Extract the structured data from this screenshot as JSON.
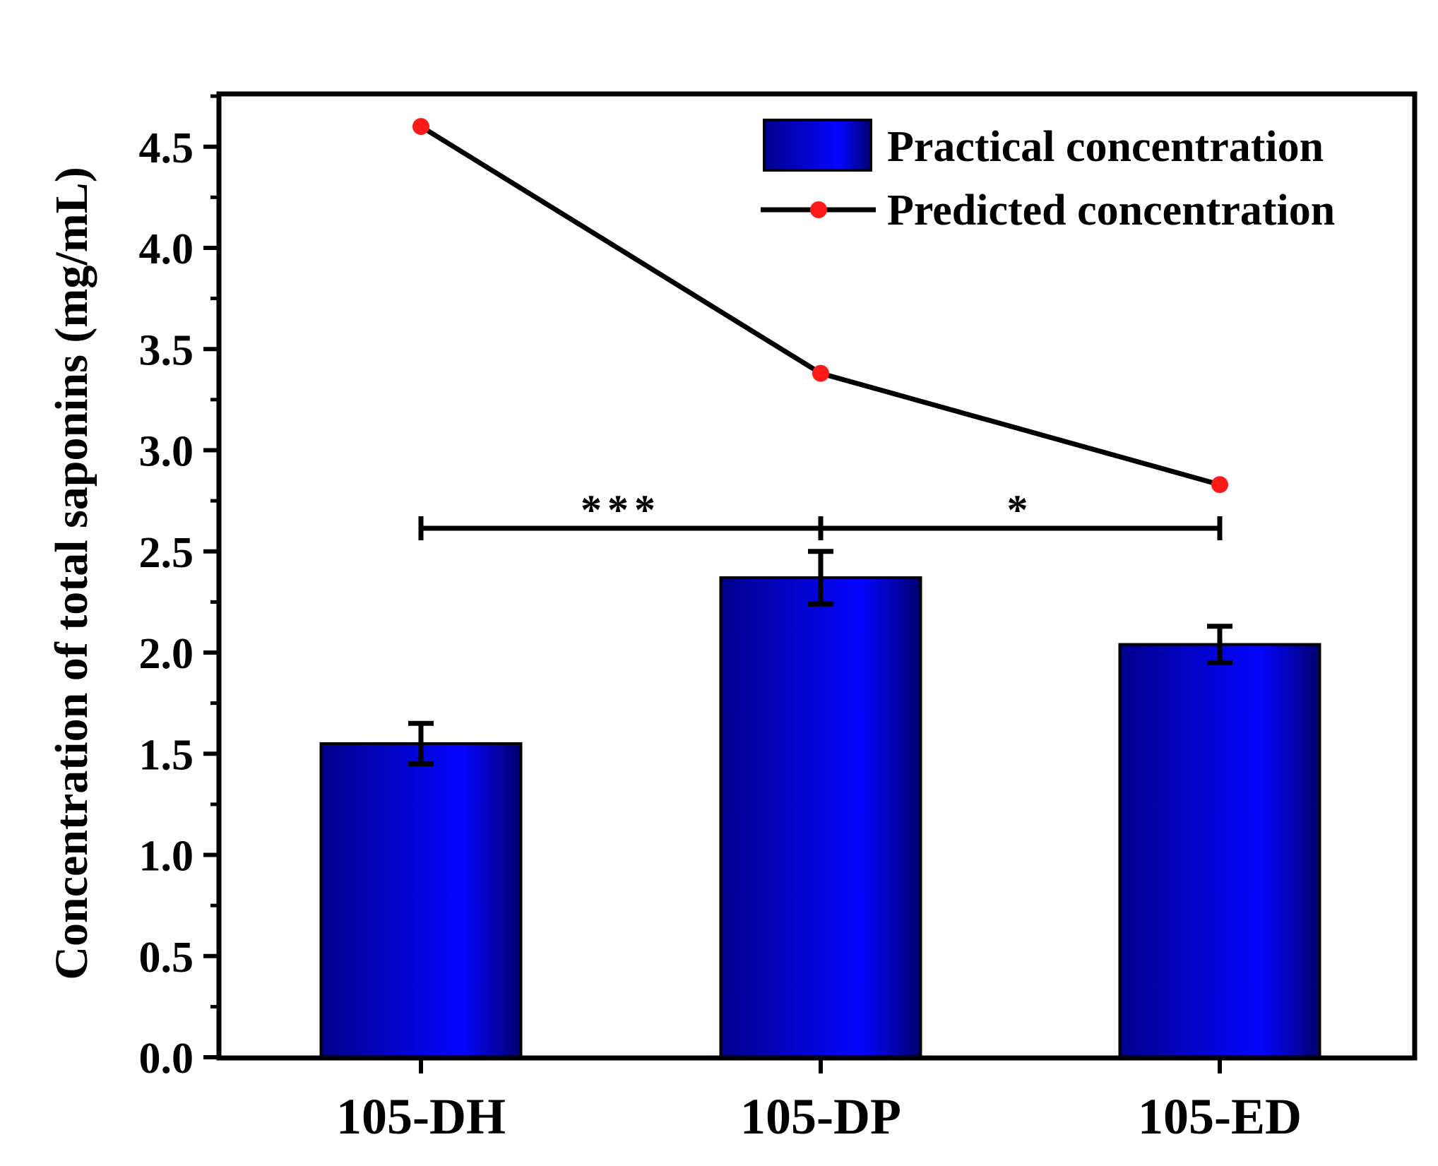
{
  "chart_data": {
    "type": "bar",
    "xlabel": "",
    "ylabel": "Concentration of total saponins (mg/mL)",
    "ylim": [
      0,
      4.8
    ],
    "yticks": [
      "0.0",
      "0.5",
      "1.0",
      "1.5",
      "2.0",
      "2.5",
      "3.0",
      "3.5",
      "4.0",
      "4.5"
    ],
    "categories": [
      "105-DH",
      "105-DP",
      "105-ED"
    ],
    "grid": false,
    "legend_position": "top-right",
    "series": [
      {
        "name": "Practical concentration",
        "kind": "bar",
        "values": [
          1.55,
          2.37,
          2.04
        ],
        "errors": [
          0.1,
          0.13,
          0.09
        ],
        "color": "#0000ee"
      },
      {
        "name": "Predicted concentration",
        "kind": "line",
        "values": [
          4.6,
          3.38,
          2.83
        ],
        "line_color": "#000000",
        "marker_color": "#ff1a1a"
      }
    ],
    "significance": [
      {
        "from": 0,
        "to": 1,
        "label": "***"
      },
      {
        "from": 1,
        "to": 2,
        "label": "*"
      }
    ]
  }
}
